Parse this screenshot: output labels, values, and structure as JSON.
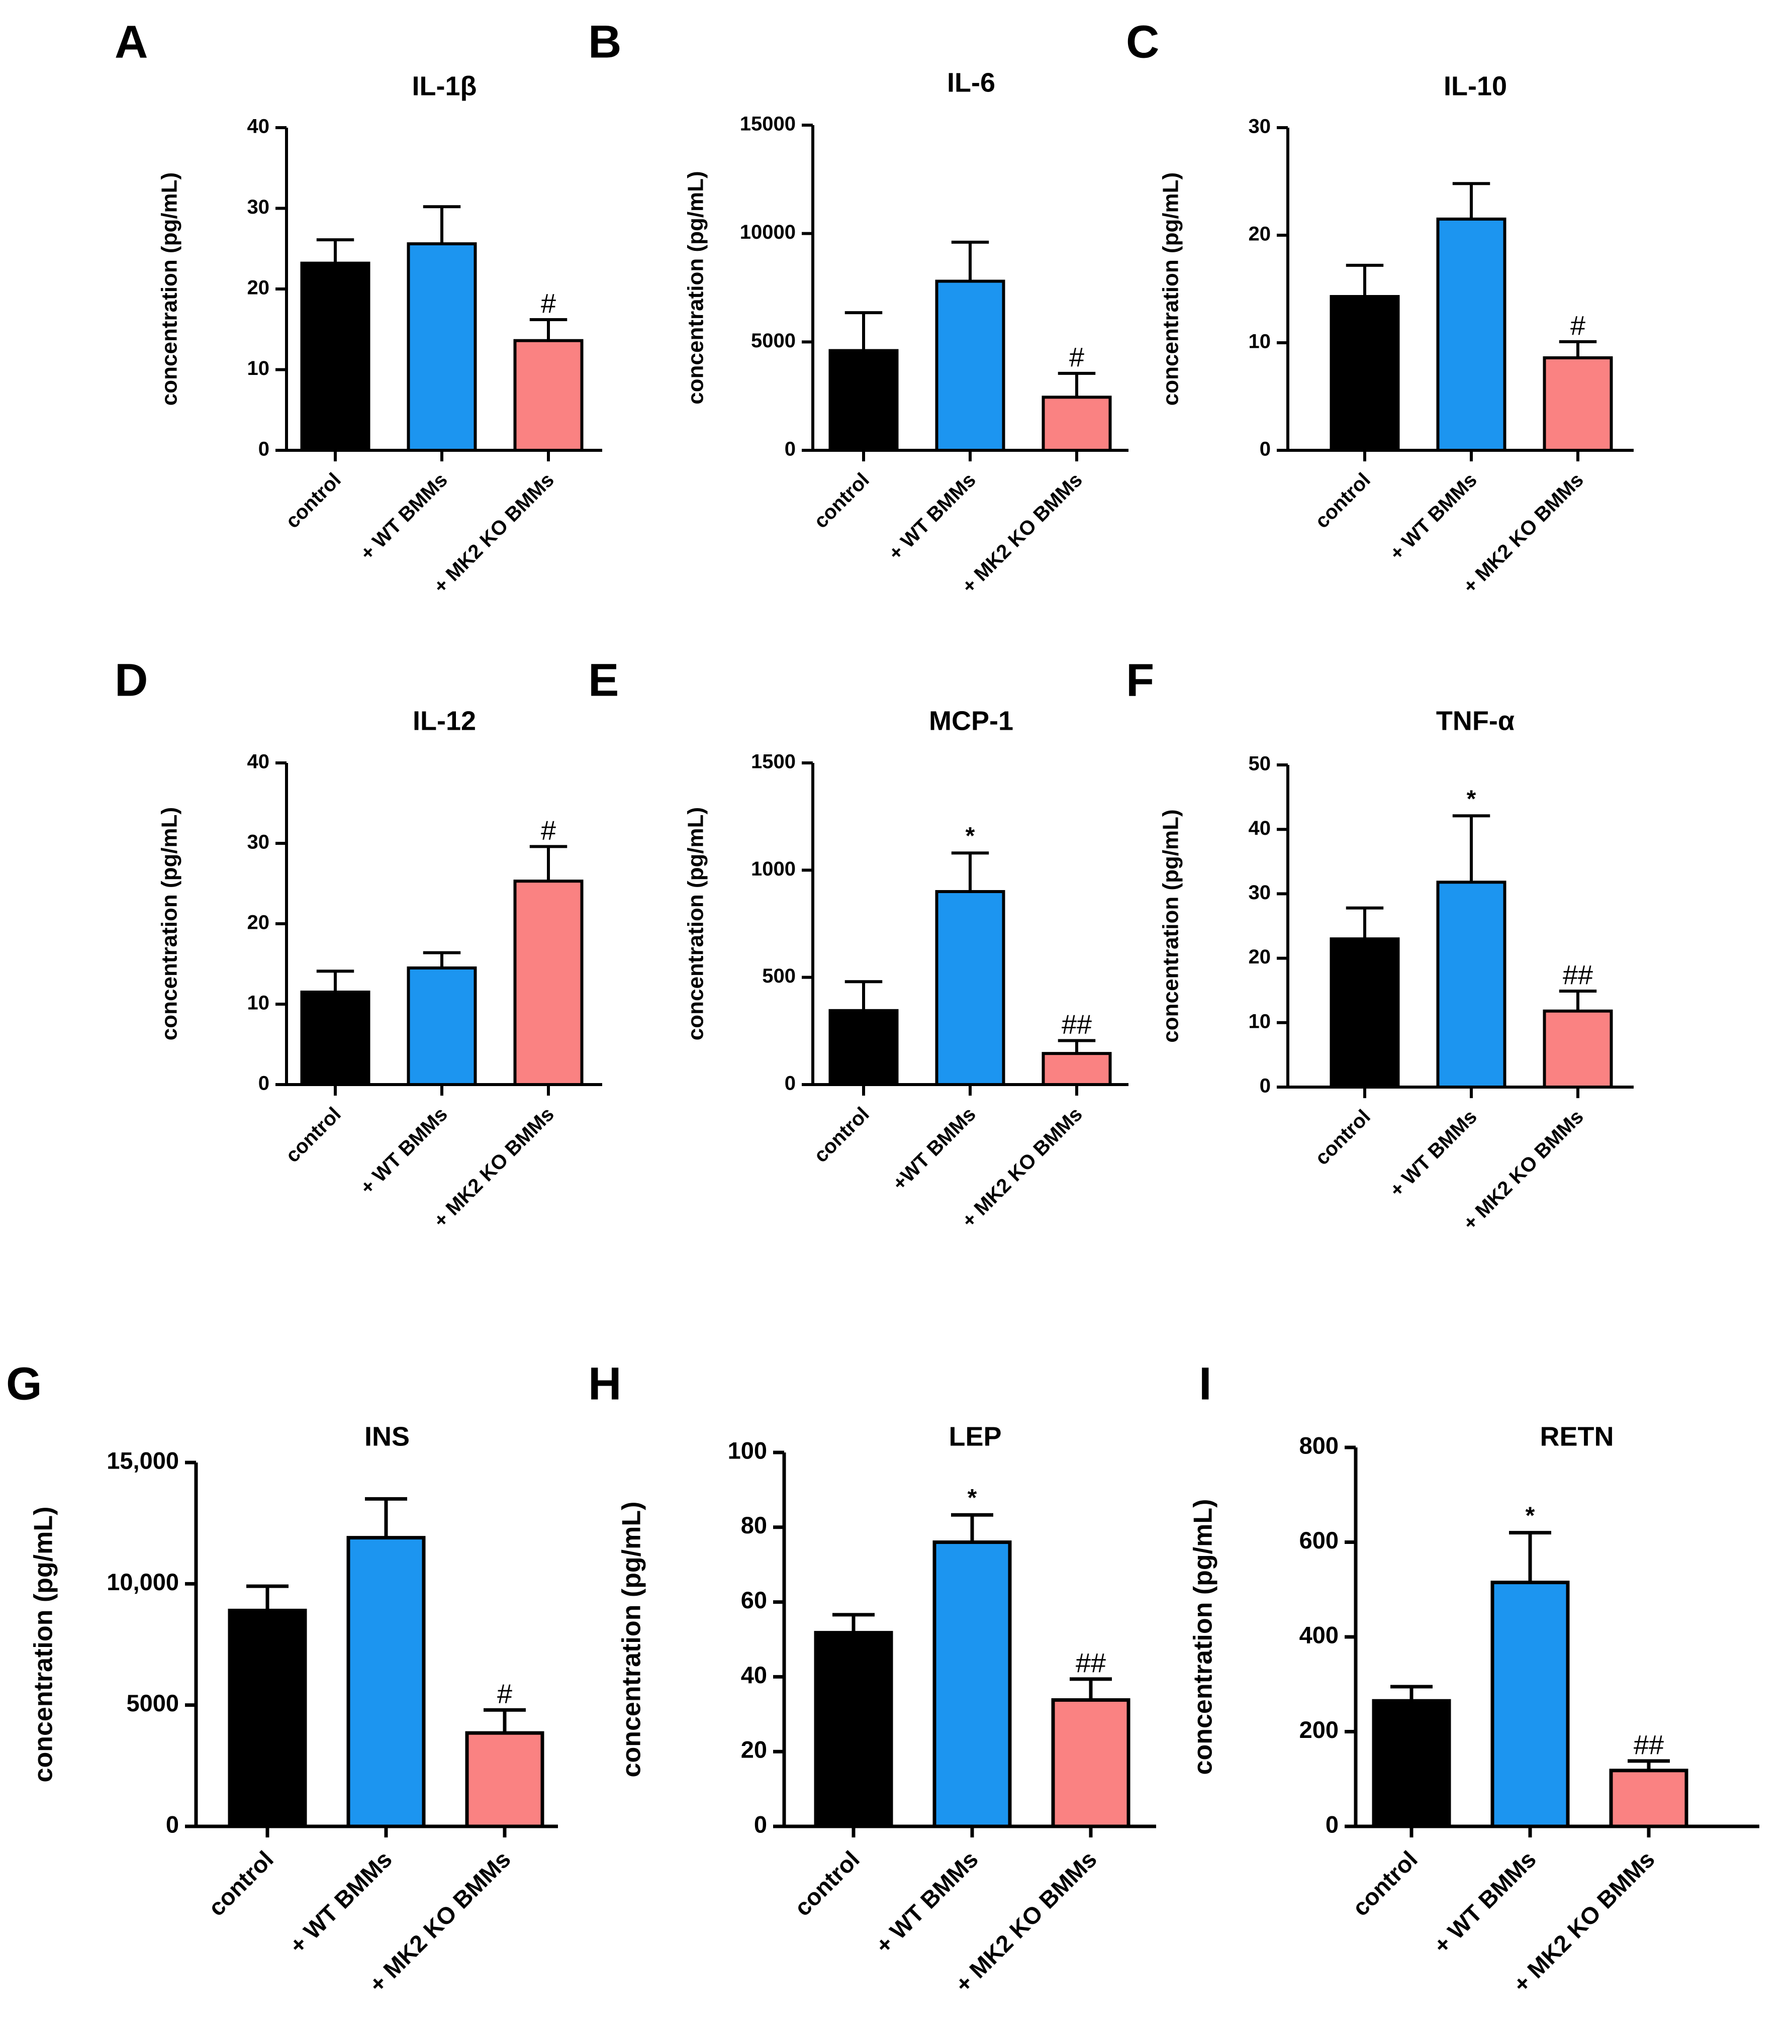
{
  "chart_data": [
    {
      "panel": "A",
      "type": "bar",
      "title": "IL-1β",
      "ylabel": "concentration (pg/mL)",
      "ylim": [
        0,
        40
      ],
      "yticks": [
        "0",
        "10",
        "20",
        "30",
        "40"
      ],
      "categories": [
        "control",
        "+ WT BMMs",
        "+ MK2 KO BMMs"
      ],
      "values": [
        23.2,
        25.6,
        13.6
      ],
      "errors": [
        2.9,
        4.6,
        2.6
      ],
      "annotations": [
        "",
        "",
        "#"
      ]
    },
    {
      "panel": "B",
      "type": "bar",
      "title": "IL-6",
      "ylabel": "concentration (pg/mL)",
      "ylim": [
        0,
        15000
      ],
      "yticks": [
        "0",
        "5000",
        "10000",
        "15000"
      ],
      "categories": [
        "control",
        "+ WT BMMs",
        "+ MK2 KO BMMs"
      ],
      "values": [
        4600,
        7800,
        2450
      ],
      "errors": [
        1750,
        1800,
        1100
      ],
      "annotations": [
        "",
        "",
        "#"
      ]
    },
    {
      "panel": "C",
      "type": "bar",
      "title": "IL-10",
      "ylabel": "concentration (pg/mL)",
      "ylim": [
        0,
        30
      ],
      "yticks": [
        "0",
        "10",
        "20",
        "30"
      ],
      "categories": [
        "control",
        "+ WT BMMs",
        "+ MK2 KO BMMs"
      ],
      "values": [
        14.3,
        21.5,
        8.6
      ],
      "errors": [
        2.9,
        3.3,
        1.5
      ],
      "annotations": [
        "",
        "",
        "#"
      ]
    },
    {
      "panel": "D",
      "type": "bar",
      "title": "IL-12",
      "ylabel": "concentration (pg/mL)",
      "ylim": [
        0,
        40
      ],
      "yticks": [
        "0",
        "10",
        "20",
        "30",
        "40"
      ],
      "categories": [
        "control",
        "+ WT BMMs",
        "+ MK2 KO BMMs"
      ],
      "values": [
        11.5,
        14.5,
        25.3
      ],
      "errors": [
        2.6,
        1.9,
        4.3
      ],
      "annotations": [
        "",
        "",
        "#"
      ]
    },
    {
      "panel": "E",
      "type": "bar",
      "title": "MCP-1",
      "ylabel": "concentration (pg/mL)",
      "ylim": [
        0,
        1500
      ],
      "yticks": [
        "0",
        "500",
        "1000",
        "1500"
      ],
      "categories": [
        "control",
        "+WT BMMs",
        "+ MK2 KO BMMs"
      ],
      "values": [
        345,
        900,
        145
      ],
      "errors": [
        135,
        180,
        60
      ],
      "annotations": [
        "",
        "*",
        "##"
      ]
    },
    {
      "panel": "F",
      "type": "bar",
      "title": "TNF-α",
      "ylabel": "concentration (pg/mL)",
      "ylim": [
        0,
        50
      ],
      "yticks": [
        "0",
        "10",
        "20",
        "30",
        "40",
        "50"
      ],
      "categories": [
        "control",
        "+ WT BMMs",
        "+ MK2 KO BMMs"
      ],
      "values": [
        23.0,
        31.8,
        11.8
      ],
      "errors": [
        4.8,
        10.3,
        3.1
      ],
      "annotations": [
        "",
        "*",
        "##"
      ]
    },
    {
      "panel": "G",
      "type": "bar",
      "title": "INS",
      "ylabel": "concentration (pg/mL)",
      "ylim": [
        0,
        15000
      ],
      "yticks": [
        "0",
        "5000",
        "10,000",
        "15,000"
      ],
      "categories": [
        "control",
        "+ WT BMMs",
        "+ MK2 KO BMMs"
      ],
      "values": [
        8900,
        11900,
        3850
      ],
      "errors": [
        1000,
        1600,
        950
      ],
      "annotations": [
        "",
        "",
        "#"
      ]
    },
    {
      "panel": "H",
      "type": "bar",
      "title": "LEP",
      "ylabel": "concentration (pg/mL)",
      "ylim": [
        0,
        100
      ],
      "yticks": [
        "0",
        "20",
        "40",
        "60",
        "80",
        "100"
      ],
      "categories": [
        "control",
        "+ WT BMMs",
        "+ MK2 KO BMMs"
      ],
      "values": [
        51.8,
        76.0,
        33.8
      ],
      "errors": [
        4.8,
        7.3,
        5.6
      ],
      "annotations": [
        "",
        "*",
        "##"
      ]
    },
    {
      "panel": "I",
      "type": "bar",
      "title": "RETN",
      "ylabel": "concentration (pg/mL)",
      "ylim": [
        0,
        800
      ],
      "yticks": [
        "0",
        "200",
        "400",
        "600",
        "800"
      ],
      "categories": [
        "control",
        "+ WT BMMs",
        "+ MK2 KO BMMs"
      ],
      "values": [
        265,
        515,
        118
      ],
      "errors": [
        30,
        105,
        20
      ],
      "annotations": [
        "",
        "*",
        "##"
      ]
    }
  ],
  "colors": [
    "#000000",
    "#1c95f0",
    "#fa8282"
  ]
}
